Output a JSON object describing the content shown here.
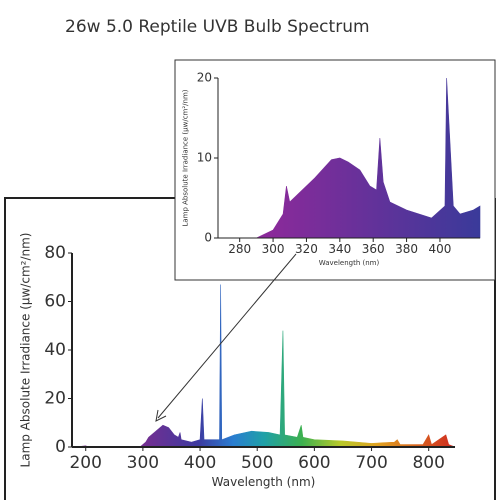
{
  "chart_data": [
    {
      "type": "area",
      "title": "26w 5.0 Reptile UVB Bulb Spectrum",
      "xlabel": "Wavelength (nm)",
      "ylabel": "Lamp Absolute Irradiance (μw/cm²/nm)",
      "x": [
        180,
        200,
        205,
        295,
        305,
        310,
        320,
        335,
        345,
        355,
        362,
        365,
        367,
        385,
        400,
        404,
        407,
        420,
        434,
        436,
        438,
        460,
        490,
        520,
        540,
        545,
        548,
        570,
        577,
        580,
        600,
        650,
        700,
        740,
        745,
        750,
        790,
        800,
        805,
        830,
        835,
        846
      ],
      "values": [
        0,
        0.5,
        0,
        0,
        2,
        4,
        6,
        9,
        8,
        5,
        4,
        6,
        3,
        2,
        3,
        20,
        3,
        3,
        3,
        67,
        3,
        5,
        6.5,
        6,
        5,
        48,
        5,
        4,
        9,
        4,
        3,
        2.5,
        1.5,
        2,
        3,
        1,
        1,
        5,
        1,
        5,
        1,
        0
      ],
      "xlim": [
        176,
        846
      ],
      "ylim": [
        0,
        80
      ],
      "xticks": [
        200,
        300,
        400,
        500,
        600,
        700,
        800
      ],
      "yticks": [
        0,
        20,
        40,
        60,
        80
      ]
    },
    {
      "type": "area",
      "xlabel": "Wavelength (nm)",
      "ylabel": "Lamp Absolute Irradiance (μw/cm²/nm)",
      "x": [
        267,
        290,
        300,
        306,
        308,
        310,
        315,
        325,
        335,
        340,
        345,
        352,
        358,
        362,
        364,
        366,
        370,
        380,
        395,
        403,
        404,
        406,
        408,
        412,
        420,
        424
      ],
      "values": [
        0,
        0,
        1,
        3,
        6.5,
        4.5,
        5.5,
        7.5,
        9.8,
        10,
        9.5,
        8.5,
        6.5,
        6,
        12.5,
        7,
        4.5,
        3.5,
        2.5,
        4,
        20,
        12,
        4,
        3,
        3.5,
        4
      ],
      "xlim": [
        267,
        424
      ],
      "ylim": [
        0,
        20
      ],
      "xticks": [
        280,
        300,
        320,
        340,
        360,
        380,
        400
      ],
      "yticks": [
        0,
        10,
        20
      ]
    }
  ]
}
